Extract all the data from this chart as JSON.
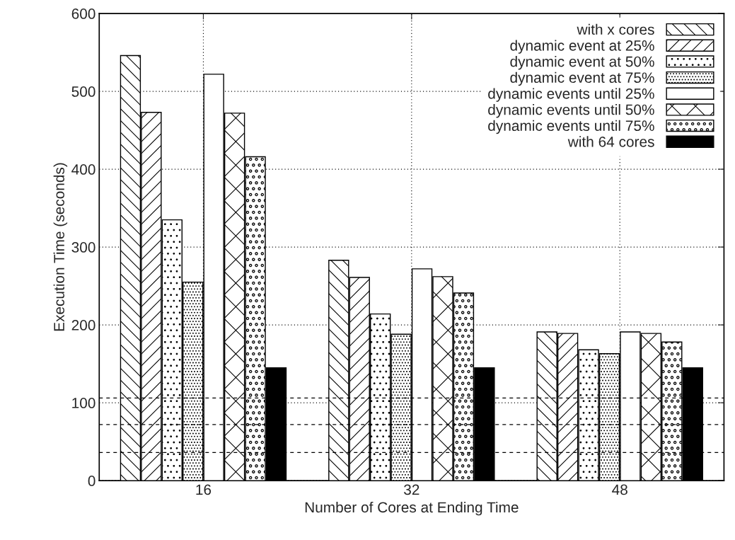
{
  "chart_data": {
    "type": "bar",
    "xlabel": "Number of Cores at Ending Time",
    "ylabel": "Execution Time (seconds)",
    "categories": [
      "16",
      "32",
      "48"
    ],
    "series": [
      {
        "name": "with x cores",
        "color": "#000000",
        "values": [
          546,
          283,
          191
        ]
      },
      {
        "name": "dynamic event at 25%",
        "color": "#000000",
        "values": [
          473,
          261,
          189
        ]
      },
      {
        "name": "dynamic event at 50%",
        "color": "#000000",
        "values": [
          335,
          214,
          168
        ]
      },
      {
        "name": "dynamic event at 75%",
        "color": "#000000",
        "values": [
          255,
          188,
          163
        ]
      },
      {
        "name": "dynamic events until 25%",
        "color": "#000000",
        "values": [
          522,
          272,
          191
        ]
      },
      {
        "name": "dynamic events until 50%",
        "color": "#000000",
        "values": [
          472,
          262,
          189
        ]
      },
      {
        "name": "dynamic events until 75%",
        "color": "#000000",
        "values": [
          416,
          241,
          178
        ]
      },
      {
        "name": "with 64 cores",
        "color": "#000000",
        "values": [
          145,
          145,
          145
        ]
      }
    ],
    "ylim": [
      0,
      600
    ],
    "yticks": [
      0,
      100,
      200,
      300,
      400,
      500,
      600
    ],
    "ref_lines": [
      {
        "axis": "y",
        "value": 106,
        "line_style": "dashed",
        "color": "#000000"
      },
      {
        "axis": "y",
        "value": 72,
        "line_style": "dashed",
        "color": "#000000"
      },
      {
        "axis": "y",
        "value": 36,
        "line_style": "dashed",
        "color": "#000000"
      }
    ],
    "grid": true,
    "legend": "top right"
  }
}
